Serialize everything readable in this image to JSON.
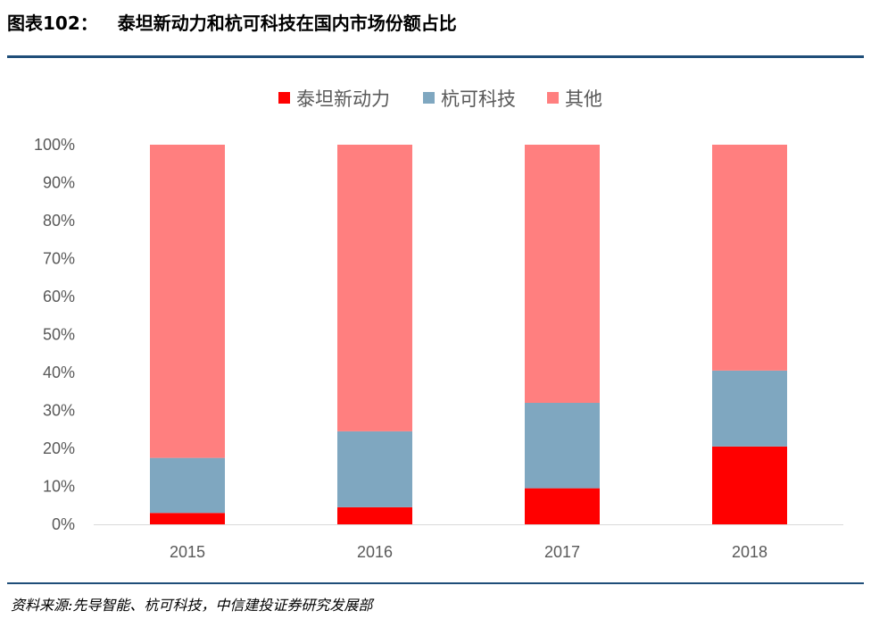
{
  "header": {
    "figure_number": "图表102：",
    "title": "泰坦新动力和杭可科技在国内市场份额占比"
  },
  "footer": {
    "source": "资料来源:先导智能、杭可科技，中信建投证券研究发展部"
  },
  "colors": {
    "rule": "#1f4e79",
    "series": [
      "#ff0000",
      "#7fa7c0",
      "#ff7f7f"
    ],
    "tick_text": "#595959"
  },
  "chart_data": {
    "type": "bar",
    "stacked": true,
    "categories": [
      "2015",
      "2016",
      "2017",
      "2018"
    ],
    "series": [
      {
        "name": "泰坦新动力",
        "values": [
          3,
          4.5,
          9.5,
          20.5
        ]
      },
      {
        "name": "杭可科技",
        "values": [
          14.5,
          20,
          22.5,
          20
        ]
      },
      {
        "name": "其他",
        "values": [
          82.5,
          75.5,
          68,
          59.5
        ]
      }
    ],
    "yticks": [
      "0%",
      "10%",
      "20%",
      "30%",
      "40%",
      "50%",
      "60%",
      "70%",
      "80%",
      "90%",
      "100%"
    ],
    "ylim": [
      0,
      100
    ],
    "legend_position": "top"
  }
}
